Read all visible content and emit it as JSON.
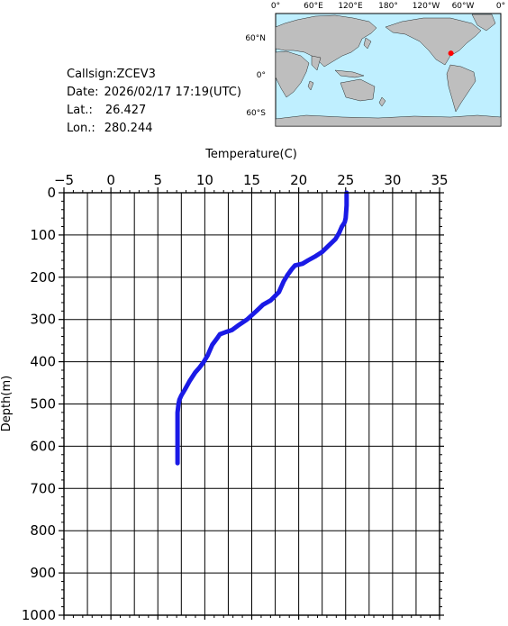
{
  "info": {
    "callsign_label": "Callsign:",
    "callsign": "ZCEV3",
    "date_label": "Date:",
    "date": "2026/02/17 17:19(UTC)",
    "lat_label": "Lat.:",
    "lat": "26.427",
    "lon_label": "Lon.:",
    "lon": "280.244"
  },
  "map": {
    "lon_labels": [
      "0°",
      "60°E",
      "120°E",
      "180°",
      "120°W",
      "60°W",
      "0°"
    ],
    "lat_labels": [
      "60°N",
      "0°",
      "60°S"
    ],
    "ocean_color": "#bfefff",
    "land_color": "#bebebe",
    "marker_color": "#ff0000",
    "marker": {
      "lon": 280.244,
      "lat": 26.427
    }
  },
  "chart_data": {
    "type": "line",
    "xlabel": "Temperature(C)",
    "ylabel": "Depth(m)",
    "xlim": [
      -5,
      35
    ],
    "ylim": [
      0,
      1000
    ],
    "y_inverted": true,
    "x_ticks": [
      -5,
      0,
      5,
      10,
      15,
      20,
      25,
      30,
      35
    ],
    "y_ticks": [
      0,
      100,
      200,
      300,
      400,
      500,
      600,
      700,
      800,
      900,
      1000
    ],
    "grid": true,
    "series": [
      {
        "color": "#1a1ae6",
        "x": [
          25.1,
          25.1,
          25.0,
          24.9,
          24.6,
          24.3,
          23.9,
          23.2,
          22.5,
          21.8,
          21.0,
          20.4,
          19.6,
          19.3,
          18.8,
          18.4,
          17.9,
          17.0,
          16.2,
          15.5,
          14.5,
          13.5,
          12.9,
          12.2,
          11.6,
          11.3,
          10.8,
          10.3,
          9.9,
          9.4,
          9.0,
          8.4,
          7.9,
          7.5,
          7.3,
          7.2,
          7.1,
          7.1,
          7.1,
          7.1
        ],
        "y": [
          0,
          30,
          60,
          70,
          80,
          95,
          110,
          125,
          140,
          150,
          160,
          168,
          172,
          180,
          195,
          210,
          235,
          255,
          265,
          280,
          300,
          315,
          325,
          330,
          335,
          345,
          360,
          385,
          400,
          415,
          425,
          445,
          465,
          480,
          490,
          500,
          520,
          560,
          600,
          640
        ]
      }
    ]
  }
}
